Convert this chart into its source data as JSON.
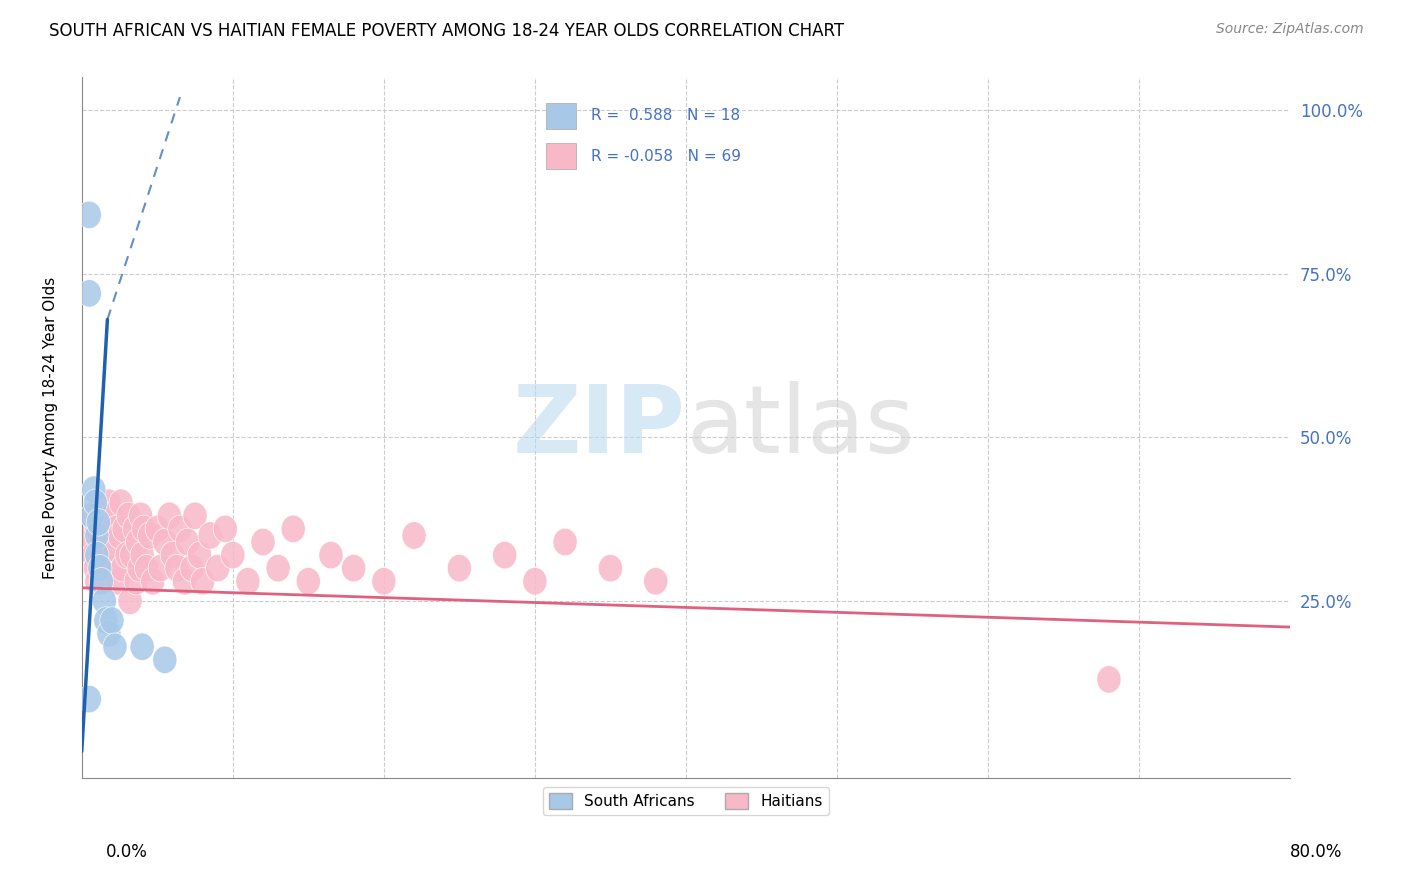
{
  "title": "SOUTH AFRICAN VS HAITIAN FEMALE POVERTY AMONG 18-24 YEAR OLDS CORRELATION CHART",
  "source": "Source: ZipAtlas.com",
  "ylabel": "Female Poverty Among 18-24 Year Olds",
  "yticks": [
    0.0,
    0.25,
    0.5,
    0.75,
    1.0
  ],
  "ytick_labels": [
    "",
    "25.0%",
    "50.0%",
    "75.0%",
    "100.0%"
  ],
  "xmin": 0.0,
  "xmax": 0.8,
  "ymin": -0.02,
  "ymax": 1.05,
  "legend_blue_r": " 0.588",
  "legend_blue_n": "18",
  "legend_pink_r": "-0.058",
  "legend_pink_n": "69",
  "blue_color": "#a8c8e8",
  "pink_color": "#f8b8c8",
  "blue_line_color": "#2060b0",
  "pink_line_color": "#e06080",
  "watermark_zip": "ZIP",
  "watermark_atlas": "atlas",
  "south_africans_x": [
    0.005,
    0.005,
    0.007,
    0.008,
    0.009,
    0.01,
    0.01,
    0.011,
    0.012,
    0.013,
    0.015,
    0.016,
    0.018,
    0.02,
    0.022,
    0.04,
    0.055,
    0.005
  ],
  "south_africans_y": [
    0.84,
    0.72,
    0.38,
    0.42,
    0.4,
    0.35,
    0.32,
    0.37,
    0.3,
    0.28,
    0.25,
    0.22,
    0.2,
    0.22,
    0.18,
    0.18,
    0.16,
    0.1
  ],
  "haitians_x": [
    0.005,
    0.007,
    0.008,
    0.009,
    0.01,
    0.01,
    0.012,
    0.013,
    0.014,
    0.015,
    0.016,
    0.018,
    0.019,
    0.02,
    0.021,
    0.022,
    0.023,
    0.024,
    0.025,
    0.026,
    0.027,
    0.028,
    0.03,
    0.031,
    0.032,
    0.033,
    0.035,
    0.036,
    0.037,
    0.038,
    0.039,
    0.04,
    0.041,
    0.043,
    0.045,
    0.047,
    0.05,
    0.052,
    0.055,
    0.058,
    0.06,
    0.063,
    0.065,
    0.068,
    0.07,
    0.073,
    0.075,
    0.078,
    0.08,
    0.085,
    0.09,
    0.095,
    0.1,
    0.11,
    0.12,
    0.13,
    0.14,
    0.15,
    0.165,
    0.18,
    0.2,
    0.22,
    0.25,
    0.28,
    0.3,
    0.32,
    0.35,
    0.38,
    0.68
  ],
  "haitians_y": [
    0.35,
    0.38,
    0.32,
    0.3,
    0.36,
    0.28,
    0.38,
    0.34,
    0.3,
    0.36,
    0.32,
    0.4,
    0.35,
    0.38,
    0.3,
    0.33,
    0.36,
    0.28,
    0.35,
    0.4,
    0.3,
    0.36,
    0.32,
    0.38,
    0.25,
    0.32,
    0.36,
    0.28,
    0.34,
    0.3,
    0.38,
    0.32,
    0.36,
    0.3,
    0.35,
    0.28,
    0.36,
    0.3,
    0.34,
    0.38,
    0.32,
    0.3,
    0.36,
    0.28,
    0.34,
    0.3,
    0.38,
    0.32,
    0.28,
    0.35,
    0.3,
    0.36,
    0.32,
    0.28,
    0.34,
    0.3,
    0.36,
    0.28,
    0.32,
    0.3,
    0.28,
    0.35,
    0.3,
    0.32,
    0.28,
    0.34,
    0.3,
    0.28,
    0.13
  ],
  "sa_trend_x0": 0.0,
  "sa_trend_y0": 0.02,
  "sa_trend_x1": 0.017,
  "sa_trend_y1": 0.68,
  "sa_trend_dashed_x0": 0.017,
  "sa_trend_dashed_y0": 0.68,
  "sa_trend_dashed_x1": 0.065,
  "sa_trend_dashed_y1": 1.02,
  "ha_trend_x0": 0.0,
  "ha_trend_y0": 0.27,
  "ha_trend_x1": 0.8,
  "ha_trend_y1": 0.21
}
